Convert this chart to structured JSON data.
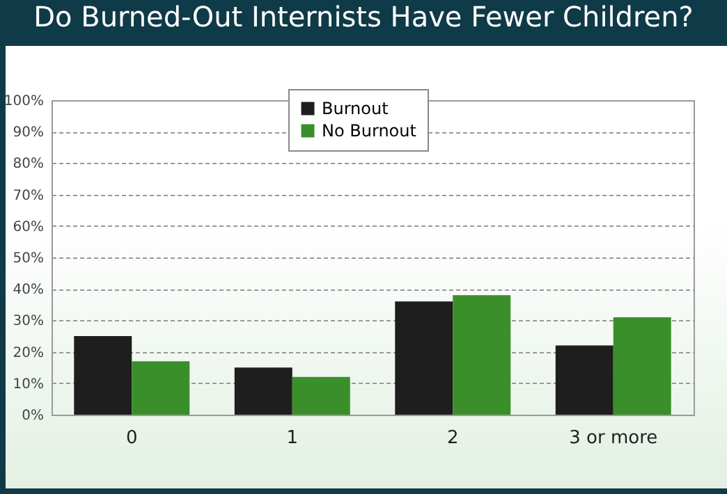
{
  "chart_data": {
    "type": "bar",
    "title": "Do Burned-Out Internists Have Fewer Children?",
    "categories": [
      "0",
      "1",
      "2",
      "3 or more"
    ],
    "series": [
      {
        "name": "Burnout",
        "color": "#1e1e1e",
        "values": [
          25,
          15,
          36,
          22
        ]
      },
      {
        "name": "No Burnout",
        "color": "#3a8f2a",
        "values": [
          17,
          12,
          38,
          31
        ]
      }
    ],
    "ylim": [
      0,
      100
    ],
    "yticks": [
      {
        "value": 0,
        "label": "0%"
      },
      {
        "value": 10,
        "label": "10%"
      },
      {
        "value": 20,
        "label": "20%"
      },
      {
        "value": 30,
        "label": "30%"
      },
      {
        "value": 40,
        "label": "40%"
      },
      {
        "value": 50,
        "label": "50%"
      },
      {
        "value": 60,
        "label": "60%"
      },
      {
        "value": 70,
        "label": "70%"
      },
      {
        "value": 80,
        "label": "80%"
      },
      {
        "value": 90,
        "label": "90%"
      },
      {
        "value": 100,
        "label": "100%"
      }
    ],
    "grid": "y",
    "legend": "top"
  }
}
